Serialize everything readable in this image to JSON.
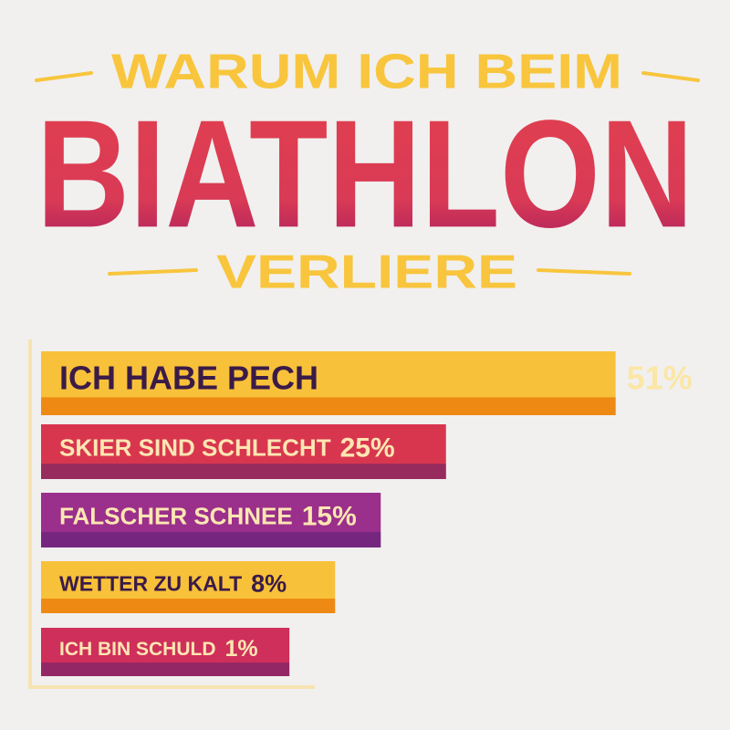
{
  "chart_data": {
    "type": "bar",
    "title": "WARUM ICH BEIM",
    "subtitle": "BIATHLON",
    "caption": "VERLIERE",
    "categories": [
      "ICH HABE PECH",
      "SKIER SIND SCHLECHT",
      "FALSCHER SCHNEE",
      "WETTER ZU KALT",
      "ICH BIN SCHULD"
    ],
    "values": [
      51,
      25,
      15,
      8,
      1
    ],
    "value_labels": [
      "51%",
      "25%",
      "15%",
      "8%",
      "1%"
    ],
    "colors": [
      "#f8c13a",
      "#d8364f",
      "#9a2f8c",
      "#f8c13a",
      "#cf2f5b"
    ]
  }
}
